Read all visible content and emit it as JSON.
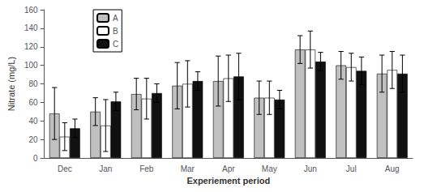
{
  "chart_data": {
    "type": "bar",
    "categories": [
      "Dec",
      "Jan",
      "Feb",
      "Mar",
      "Apr",
      "May",
      "Jun",
      "Jul",
      "Aug"
    ],
    "series": [
      {
        "name": "A",
        "color": "#c0c0c0",
        "values": [
          48,
          50,
          69,
          78,
          83,
          65,
          117,
          100,
          91
        ],
        "errors": [
          28,
          15,
          17,
          25,
          27,
          18,
          15,
          15,
          20
        ]
      },
      {
        "name": "B",
        "color": "white",
        "values": [
          23,
          35,
          64,
          80,
          86,
          65,
          117,
          98,
          95
        ],
        "errors": [
          15,
          28,
          22,
          25,
          25,
          18,
          20,
          15,
          20
        ]
      },
      {
        "name": "C",
        "color": "#111111",
        "values": [
          32,
          61,
          70,
          83,
          88,
          63,
          104,
          94,
          91
        ],
        "errors": [
          10,
          10,
          10,
          10,
          25,
          10,
          10,
          15,
          20
        ]
      }
    ],
    "xlabel": "Experiement period",
    "ylabel": "Nitrate (mg/L)",
    "ylim": [
      0,
      160
    ],
    "yticks": [
      0,
      20,
      40,
      60,
      80,
      100,
      120,
      140,
      160
    ],
    "grid": false,
    "legend": "upper left"
  }
}
